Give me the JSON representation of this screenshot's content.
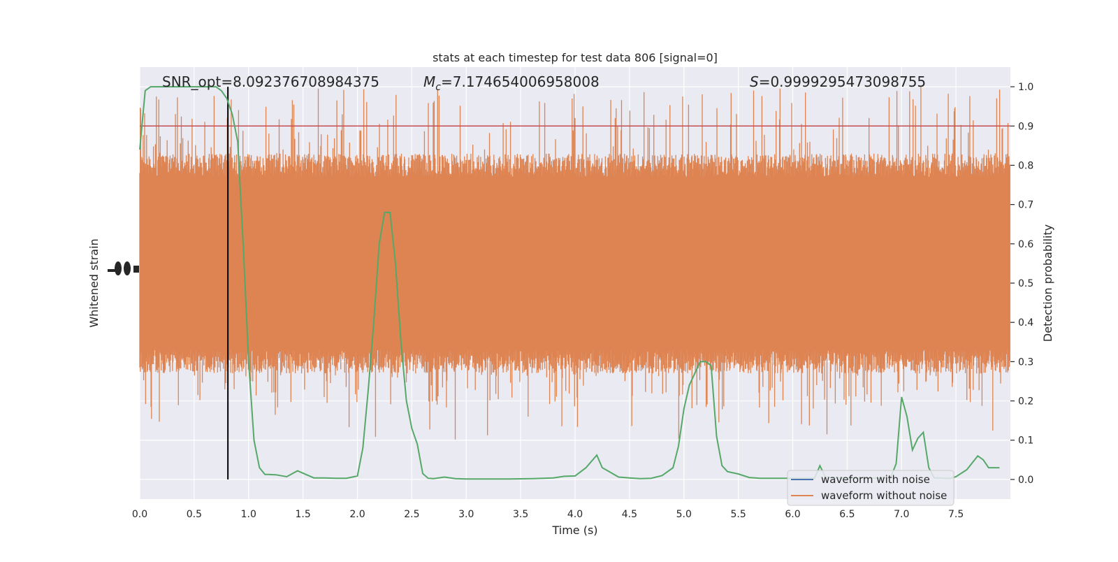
{
  "chart_data": {
    "type": "line",
    "title": "stats at each timestep for test data 806 [signal=0]",
    "xlabel": "Time (s)",
    "ylabel_left": "Whitened strain",
    "ylabel_right": "Detection probability",
    "xlim": [
      0.0,
      8.0
    ],
    "ylim_right": [
      -0.05,
      1.05
    ],
    "x_ticks": [
      0.0,
      0.5,
      1.0,
      1.5,
      2.0,
      2.5,
      3.0,
      3.5,
      4.0,
      4.5,
      5.0,
      5.5,
      6.0,
      6.5,
      7.0,
      7.5
    ],
    "x_tick_labels": [
      "0.0",
      "0.5",
      "1.0",
      "1.5",
      "2.0",
      "2.5",
      "3.0",
      "3.5",
      "4.0",
      "4.5",
      "5.0",
      "5.5",
      "6.0",
      "6.5",
      "7.0",
      "7.5"
    ],
    "y_right_ticks": [
      0.0,
      0.1,
      0.2,
      0.3,
      0.4,
      0.5,
      0.6,
      0.7,
      0.8,
      0.9,
      1.0
    ],
    "y_right_tick_labels": [
      "0.0",
      "0.1",
      "0.2",
      "0.3",
      "0.4",
      "0.5",
      "0.6",
      "0.7",
      "0.8",
      "0.9",
      "1.0"
    ],
    "grid": true,
    "legend_position": "lower-right",
    "annotations": {
      "snr": "SNR_opt=8.092376708984375",
      "mc_symbol": "M",
      "mc_subscript": "c",
      "mc_value": "=7.174654006958008",
      "s_symbol": "S",
      "s_value": "=0.9999295473098755"
    },
    "threshold": {
      "value": 0.9,
      "color": "#c44e52"
    },
    "marker_line": {
      "x": 0.81,
      "color": "#000000"
    },
    "colors": {
      "with_noise": "#4c72b0",
      "without_noise": "#dd8452",
      "probability": "#55a868",
      "background": "#eaeaf2",
      "grid": "#ffffff"
    },
    "series": [
      {
        "name": "waveform with noise",
        "role": "left-axis",
        "description_level": [
          0.2,
          0.95
        ]
      },
      {
        "name": "waveform without noise",
        "role": "left-axis",
        "band_core": [
          0.3,
          0.8
        ],
        "band_peaks": [
          0.1,
          1.0
        ]
      },
      {
        "name": "detection probability",
        "role": "right-axis",
        "x": [
          0.0,
          0.05,
          0.1,
          0.2,
          0.3,
          0.4,
          0.5,
          0.6,
          0.7,
          0.75,
          0.8,
          0.85,
          0.9,
          0.95,
          1.0,
          1.05,
          1.1,
          1.15,
          1.25,
          1.35,
          1.45,
          1.5,
          1.6,
          1.7,
          1.8,
          1.9,
          2.0,
          2.05,
          2.1,
          2.15,
          2.2,
          2.25,
          2.3,
          2.35,
          2.4,
          2.45,
          2.5,
          2.55,
          2.6,
          2.65,
          2.7,
          2.8,
          2.9,
          3.0,
          3.2,
          3.4,
          3.6,
          3.8,
          3.9,
          4.0,
          4.1,
          4.2,
          4.25,
          4.3,
          4.4,
          4.5,
          4.6,
          4.7,
          4.8,
          4.9,
          4.95,
          5.0,
          5.05,
          5.1,
          5.15,
          5.2,
          5.25,
          5.3,
          5.35,
          5.4,
          5.5,
          5.6,
          5.7,
          5.8,
          6.0,
          6.2,
          6.25,
          6.3,
          6.5,
          6.7,
          6.9,
          6.95,
          7.0,
          7.05,
          7.1,
          7.15,
          7.2,
          7.25,
          7.3,
          7.35,
          7.4,
          7.45,
          7.5,
          7.6,
          7.7,
          7.75,
          7.8,
          7.85,
          7.9
        ],
        "y": [
          0.84,
          0.99,
          1.0,
          1.0,
          1.0,
          1.0,
          1.0,
          1.0,
          1.0,
          0.99,
          0.97,
          0.93,
          0.86,
          0.6,
          0.3,
          0.1,
          0.03,
          0.013,
          0.012,
          0.007,
          0.022,
          0.016,
          0.004,
          0.004,
          0.003,
          0.003,
          0.009,
          0.08,
          0.23,
          0.4,
          0.6,
          0.68,
          0.68,
          0.55,
          0.35,
          0.2,
          0.13,
          0.09,
          0.015,
          0.003,
          0.002,
          0.006,
          0.002,
          0.001,
          0.001,
          0.001,
          0.002,
          0.004,
          0.008,
          0.009,
          0.03,
          0.062,
          0.03,
          0.022,
          0.006,
          0.004,
          0.002,
          0.003,
          0.01,
          0.03,
          0.085,
          0.18,
          0.24,
          0.27,
          0.3,
          0.3,
          0.29,
          0.11,
          0.035,
          0.02,
          0.014,
          0.005,
          0.003,
          0.003,
          0.003,
          0.003,
          0.035,
          0.006,
          0.004,
          0.003,
          0.005,
          0.04,
          0.21,
          0.16,
          0.075,
          0.105,
          0.12,
          0.03,
          0.004,
          0.004,
          0.003,
          0.003,
          0.007,
          0.025,
          0.06,
          0.05,
          0.03,
          0.03,
          0.03
        ]
      }
    ]
  }
}
